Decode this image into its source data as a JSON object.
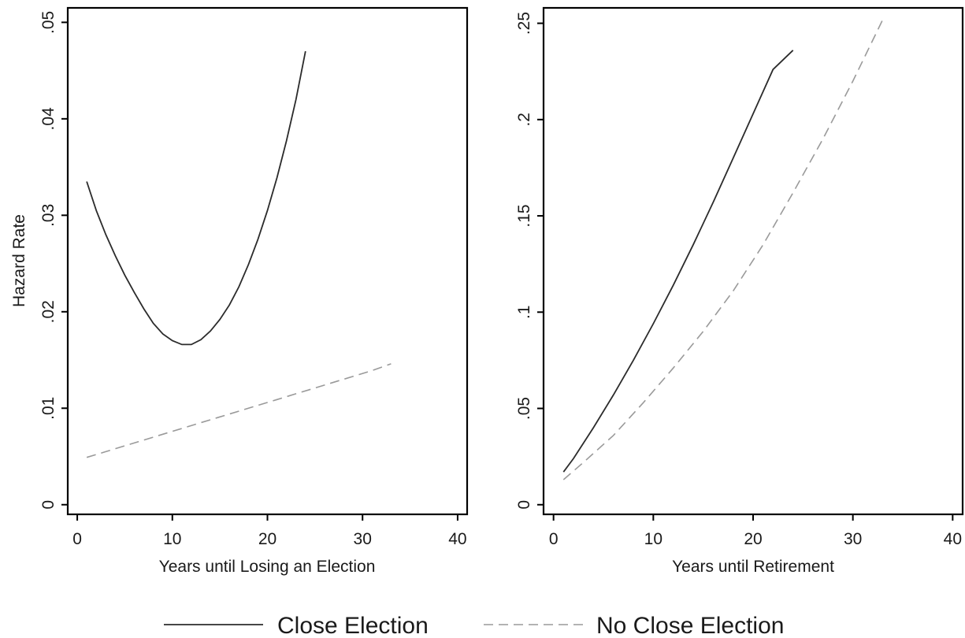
{
  "legend": {
    "items": [
      {
        "label": "Close Election",
        "style": "solid",
        "color": "#2b2b2b"
      },
      {
        "label": "No Close Election",
        "style": "dashed",
        "color": "#9a9a9a"
      }
    ]
  },
  "chart_data": [
    {
      "type": "line",
      "xlabel": "Years until Losing an Election",
      "ylabel": "Hazard Rate",
      "xlim": [
        -1,
        41
      ],
      "ylim": [
        -0.001,
        0.0515
      ],
      "xticks": [
        0,
        10,
        20,
        30,
        40
      ],
      "xtick_labels": [
        "0",
        "10",
        "20",
        "30",
        "40"
      ],
      "yticks": [
        0,
        0.01,
        0.02,
        0.03,
        0.04,
        0.05
      ],
      "ytick_labels": [
        "0",
        ".01",
        ".02",
        ".03",
        ".04",
        ".05"
      ],
      "grid": false,
      "series": [
        {
          "name": "Close Election",
          "style": "solid",
          "x": [
            1,
            2,
            3,
            4,
            5,
            6,
            7,
            8,
            9,
            10,
            11,
            12,
            13,
            14,
            15,
            16,
            17,
            18,
            19,
            20,
            21,
            22,
            23,
            24
          ],
          "y": [
            0.0335,
            0.0305,
            0.028,
            0.0258,
            0.0238,
            0.022,
            0.0203,
            0.0188,
            0.0177,
            0.017,
            0.0166,
            0.0166,
            0.0171,
            0.018,
            0.0192,
            0.0207,
            0.0226,
            0.0249,
            0.0275,
            0.0305,
            0.0339,
            0.0377,
            0.042,
            0.047
          ]
        },
        {
          "name": "No Close Election",
          "style": "dashed",
          "x": [
            1,
            3,
            5,
            7,
            9,
            11,
            13,
            15,
            17,
            19,
            21,
            23,
            25,
            27,
            29,
            31,
            33
          ],
          "y": [
            0.0049,
            0.0055,
            0.0061,
            0.0067,
            0.0073,
            0.0079,
            0.0085,
            0.0091,
            0.0097,
            0.0103,
            0.0109,
            0.0115,
            0.0121,
            0.0127,
            0.0133,
            0.0139,
            0.0146
          ]
        }
      ]
    },
    {
      "type": "line",
      "xlabel": "Years until Retirement",
      "ylabel": "",
      "xlim": [
        -1,
        41
      ],
      "ylim": [
        -0.005,
        0.258
      ],
      "xticks": [
        0,
        10,
        20,
        30,
        40
      ],
      "xtick_labels": [
        "0",
        "10",
        "20",
        "30",
        "40"
      ],
      "yticks": [
        0,
        0.05,
        0.1,
        0.15,
        0.2,
        0.25
      ],
      "ytick_labels": [
        "0",
        ".05",
        ".1",
        ".15",
        ".2",
        ".25"
      ],
      "grid": false,
      "series": [
        {
          "name": "Close Election",
          "style": "solid",
          "x": [
            1,
            2,
            4,
            6,
            8,
            10,
            12,
            14,
            16,
            18,
            20,
            22,
            24
          ],
          "y": [
            0.017,
            0.024,
            0.04,
            0.057,
            0.075,
            0.094,
            0.114,
            0.135,
            0.157,
            0.18,
            0.203,
            0.226,
            0.236
          ]
        },
        {
          "name": "No Close Election",
          "style": "dashed",
          "x": [
            1,
            3,
            6,
            9,
            12,
            15,
            18,
            21,
            24,
            27,
            30,
            33
          ],
          "y": [
            0.013,
            0.022,
            0.036,
            0.053,
            0.071,
            0.09,
            0.111,
            0.135,
            0.162,
            0.19,
            0.22,
            0.252
          ]
        }
      ]
    }
  ]
}
